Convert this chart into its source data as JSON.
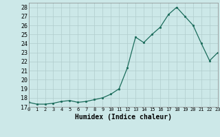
{
  "x": [
    0,
    1,
    2,
    3,
    4,
    5,
    6,
    7,
    8,
    9,
    10,
    11,
    12,
    13,
    14,
    15,
    16,
    17,
    18,
    19,
    20,
    21,
    22,
    23
  ],
  "y": [
    17.5,
    17.3,
    17.3,
    17.4,
    17.6,
    17.7,
    17.5,
    17.6,
    17.8,
    18.0,
    18.4,
    19.0,
    21.3,
    24.7,
    24.1,
    25.0,
    25.8,
    27.2,
    28.0,
    27.0,
    26.0,
    24.0,
    22.1,
    23.0
  ],
  "xlabel": "Humidex (Indice chaleur)",
  "xlim": [
    0,
    23
  ],
  "ylim": [
    17,
    28.5
  ],
  "yticks": [
    17,
    18,
    19,
    20,
    21,
    22,
    23,
    24,
    25,
    26,
    27,
    28
  ],
  "xticks": [
    0,
    1,
    2,
    3,
    4,
    5,
    6,
    7,
    8,
    9,
    10,
    11,
    12,
    13,
    14,
    15,
    16,
    17,
    18,
    19,
    20,
    21,
    22,
    23
  ],
  "line_color": "#1a6b5a",
  "marker_color": "#1a6b5a",
  "bg_color": "#cce8e8",
  "grid_color": "#b0cccc"
}
